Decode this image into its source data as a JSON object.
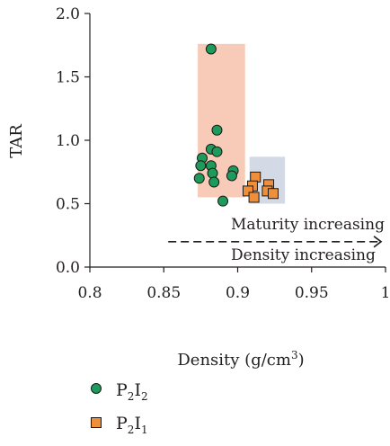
{
  "chart_data": {
    "type": "scatter",
    "title": "",
    "xlabel": "Density (g/cm3)",
    "xlabel_parts": {
      "main": "Density (g/cm",
      "sup": "3",
      "close": ")"
    },
    "ylabel": "TAR",
    "xlim": [
      0.8,
      1.0
    ],
    "ylim": [
      0.0,
      2.0
    ],
    "xticks": [
      "0.8",
      "0.85",
      "0.9",
      "0.95",
      "1"
    ],
    "xtick_values": [
      0.8,
      0.85,
      0.9,
      0.95,
      1.0
    ],
    "yticks": [
      "0.0",
      "0.5",
      "1.0",
      "1.5",
      "2.0"
    ],
    "ytick_values": [
      0.0,
      0.5,
      1.0,
      1.5,
      2.0
    ],
    "grid": false,
    "legend_position": "bottom-left",
    "series": [
      {
        "name": "P2I2",
        "label_parts": [
          "P",
          "2",
          "I",
          "2"
        ],
        "marker": "circle",
        "color": "#1e9a5a",
        "points": [
          [
            0.882,
            1.72
          ],
          [
            0.886,
            1.08
          ],
          [
            0.882,
            0.93
          ],
          [
            0.886,
            0.91
          ],
          [
            0.876,
            0.86
          ],
          [
            0.882,
            0.8
          ],
          [
            0.875,
            0.8
          ],
          [
            0.897,
            0.76
          ],
          [
            0.883,
            0.74
          ],
          [
            0.896,
            0.72
          ],
          [
            0.874,
            0.7
          ],
          [
            0.884,
            0.67
          ],
          [
            0.89,
            0.52
          ]
        ]
      },
      {
        "name": "P2I1",
        "label_parts": [
          "P",
          "2",
          "I",
          "1"
        ],
        "marker": "square",
        "color": "#ef8f3a",
        "points": [
          [
            0.912,
            0.71
          ],
          [
            0.91,
            0.64
          ],
          [
            0.921,
            0.65
          ],
          [
            0.907,
            0.6
          ],
          [
            0.92,
            0.6
          ],
          [
            0.924,
            0.58
          ],
          [
            0.911,
            0.55
          ]
        ]
      }
    ],
    "regions": [
      {
        "x": [
          0.873,
          0.905
        ],
        "y": [
          0.55,
          1.76
        ],
        "color": "#f7cbb7"
      },
      {
        "x": [
          0.908,
          0.932
        ],
        "y": [
          0.5,
          0.87
        ],
        "color": "#d3dae5"
      }
    ],
    "annotations": {
      "maturity": "Maturity increasing",
      "density": "Density increasing"
    },
    "arrow": {
      "y": 0.2,
      "x_start": 0.853,
      "x_end": 0.997,
      "style": "dashed"
    }
  }
}
